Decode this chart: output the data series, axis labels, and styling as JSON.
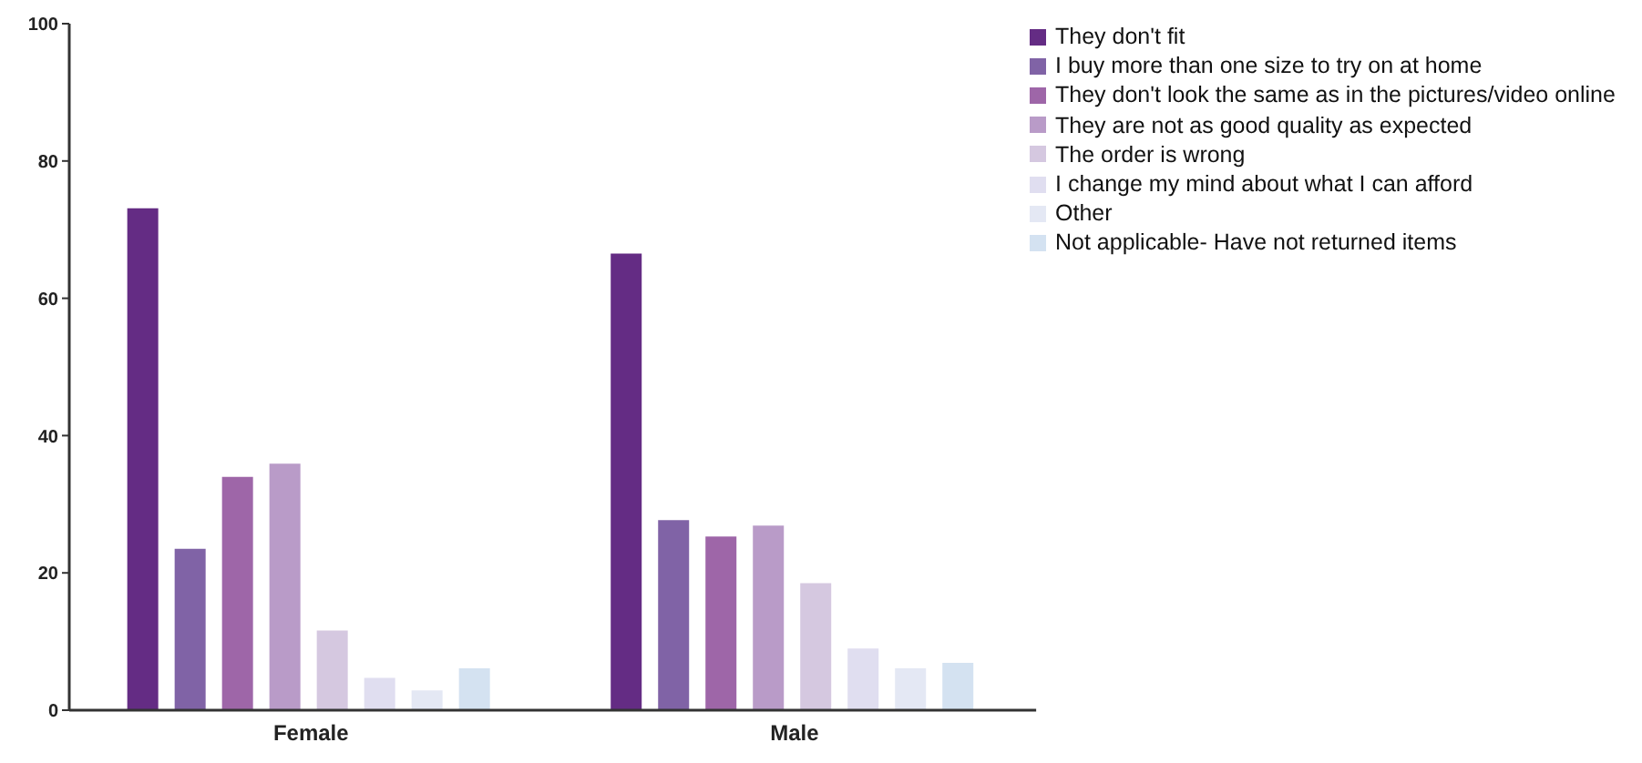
{
  "chart_data": {
    "type": "bar",
    "categories": [
      "Female",
      "Male"
    ],
    "series": [
      {
        "name": "They don't fit",
        "color": "#642c84",
        "values": [
          73.1,
          66.5
        ]
      },
      {
        "name": "I buy more than one size to try on at home",
        "color": "#8063a6",
        "values": [
          23.5,
          27.7
        ]
      },
      {
        "name": "They don't look the same as in the pictures/video online",
        "color": "#9e66a8",
        "values": [
          34.0,
          25.3
        ]
      },
      {
        "name": "They are not as good quality as expected",
        "color": "#b99bc8",
        "values": [
          35.9,
          26.9
        ]
      },
      {
        "name": "The order is wrong",
        "color": "#d5c8e0",
        "values": [
          11.6,
          18.5
        ]
      },
      {
        "name": "I change my mind about what I can afford",
        "color": "#e0def0",
        "values": [
          4.7,
          9.0
        ]
      },
      {
        "name": "Other",
        "color": "#e4e8f4",
        "values": [
          2.9,
          6.1
        ]
      },
      {
        "name": "Not applicable- Have not returned items",
        "color": "#d4e2f1",
        "values": [
          6.1,
          6.9
        ]
      }
    ],
    "ylim": [
      0,
      100
    ],
    "yticks": [
      0,
      20,
      40,
      60,
      80,
      100
    ],
    "grid": false,
    "legend": "top right"
  }
}
